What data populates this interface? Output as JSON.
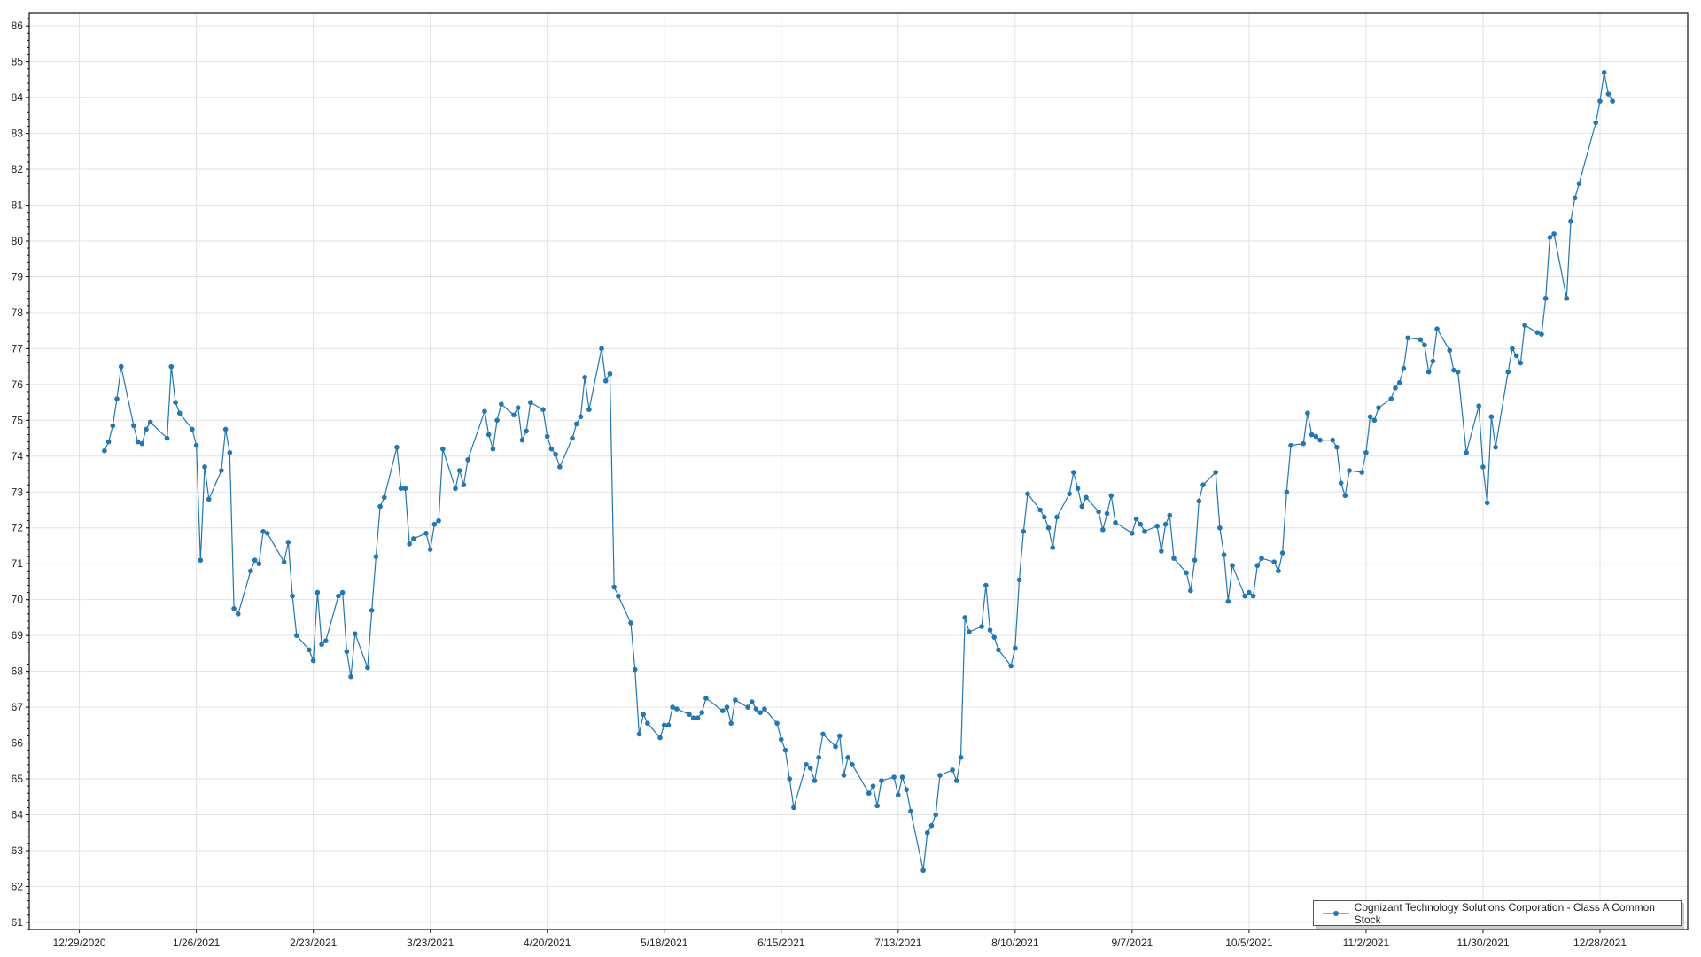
{
  "chart_data": {
    "type": "line",
    "title": "",
    "xlabel": "",
    "ylabel": "",
    "xlim": [
      "2020-12-17",
      "2022-01-18"
    ],
    "ylim": [
      60.8,
      86.35
    ],
    "yticks": [
      61,
      62,
      63,
      64,
      65,
      66,
      67,
      68,
      69,
      70,
      71,
      72,
      73,
      74,
      75,
      76,
      77,
      78,
      79,
      80,
      81,
      82,
      83,
      84,
      85,
      86
    ],
    "xticks": [
      "2020-12-29",
      "2021-01-26",
      "2021-02-23",
      "2021-03-23",
      "2021-04-20",
      "2021-05-18",
      "2021-06-15",
      "2021-07-13",
      "2021-08-10",
      "2021-09-07",
      "2021-10-05",
      "2021-11-02",
      "2021-11-30",
      "2021-12-28"
    ],
    "xtick_labels": [
      "12/29/2020",
      "1/26/2021",
      "2/23/2021",
      "3/23/2021",
      "4/20/2021",
      "5/18/2021",
      "6/15/2021",
      "7/13/2021",
      "8/10/2021",
      "9/7/2021",
      "10/5/2021",
      "11/2/2021",
      "11/30/2021",
      "12/28/2021"
    ],
    "grid": true,
    "legend_placement": "bottom-right",
    "series": [
      {
        "name": "Cognizant Technology Solutions Corporation - Class A Common Stock",
        "color": "#1f77b4",
        "marker": "circle",
        "x": [
          "2021-01-04",
          "2021-01-05",
          "2021-01-06",
          "2021-01-07",
          "2021-01-08",
          "2021-01-11",
          "2021-01-12",
          "2021-01-13",
          "2021-01-14",
          "2021-01-15",
          "2021-01-19",
          "2021-01-20",
          "2021-01-21",
          "2021-01-22",
          "2021-01-25",
          "2021-01-26",
          "2021-01-27",
          "2021-01-28",
          "2021-01-29",
          "2021-02-01",
          "2021-02-02",
          "2021-02-03",
          "2021-02-04",
          "2021-02-05",
          "2021-02-08",
          "2021-02-09",
          "2021-02-10",
          "2021-02-11",
          "2021-02-12",
          "2021-02-16",
          "2021-02-17",
          "2021-02-18",
          "2021-02-19",
          "2021-02-22",
          "2021-02-23",
          "2021-02-24",
          "2021-02-25",
          "2021-02-26",
          "2021-03-01",
          "2021-03-02",
          "2021-03-03",
          "2021-03-04",
          "2021-03-05",
          "2021-03-08",
          "2021-03-09",
          "2021-03-10",
          "2021-03-11",
          "2021-03-12",
          "2021-03-15",
          "2021-03-16",
          "2021-03-17",
          "2021-03-18",
          "2021-03-19",
          "2021-03-22",
          "2021-03-23",
          "2021-03-24",
          "2021-03-25",
          "2021-03-26",
          "2021-03-29",
          "2021-03-30",
          "2021-03-31",
          "2021-04-01",
          "2021-04-05",
          "2021-04-06",
          "2021-04-07",
          "2021-04-08",
          "2021-04-09",
          "2021-04-12",
          "2021-04-13",
          "2021-04-14",
          "2021-04-15",
          "2021-04-16",
          "2021-04-19",
          "2021-04-20",
          "2021-04-21",
          "2021-04-22",
          "2021-04-23",
          "2021-04-26",
          "2021-04-27",
          "2021-04-28",
          "2021-04-29",
          "2021-04-30",
          "2021-05-03",
          "2021-05-04",
          "2021-05-05",
          "2021-05-06",
          "2021-05-07",
          "2021-05-10",
          "2021-05-11",
          "2021-05-12",
          "2021-05-13",
          "2021-05-14",
          "2021-05-17",
          "2021-05-18",
          "2021-05-19",
          "2021-05-20",
          "2021-05-21",
          "2021-05-24",
          "2021-05-25",
          "2021-05-26",
          "2021-05-27",
          "2021-05-28",
          "2021-06-01",
          "2021-06-02",
          "2021-06-03",
          "2021-06-04",
          "2021-06-07",
          "2021-06-08",
          "2021-06-09",
          "2021-06-10",
          "2021-06-11",
          "2021-06-14",
          "2021-06-15",
          "2021-06-16",
          "2021-06-17",
          "2021-06-18",
          "2021-06-21",
          "2021-06-22",
          "2021-06-23",
          "2021-06-24",
          "2021-06-25",
          "2021-06-28",
          "2021-06-29",
          "2021-06-30",
          "2021-07-01",
          "2021-07-02",
          "2021-07-06",
          "2021-07-07",
          "2021-07-08",
          "2021-07-09",
          "2021-07-12",
          "2021-07-13",
          "2021-07-14",
          "2021-07-15",
          "2021-07-16",
          "2021-07-19",
          "2021-07-20",
          "2021-07-21",
          "2021-07-22",
          "2021-07-23",
          "2021-07-26",
          "2021-07-27",
          "2021-07-28",
          "2021-07-29",
          "2021-07-30",
          "2021-08-02",
          "2021-08-03",
          "2021-08-04",
          "2021-08-05",
          "2021-08-06",
          "2021-08-09",
          "2021-08-10",
          "2021-08-11",
          "2021-08-12",
          "2021-08-13",
          "2021-08-16",
          "2021-08-17",
          "2021-08-18",
          "2021-08-19",
          "2021-08-20",
          "2021-08-23",
          "2021-08-24",
          "2021-08-25",
          "2021-08-26",
          "2021-08-27",
          "2021-08-30",
          "2021-08-31",
          "2021-09-01",
          "2021-09-02",
          "2021-09-03",
          "2021-09-07",
          "2021-09-08",
          "2021-09-09",
          "2021-09-10",
          "2021-09-13",
          "2021-09-14",
          "2021-09-15",
          "2021-09-16",
          "2021-09-17",
          "2021-09-20",
          "2021-09-21",
          "2021-09-22",
          "2021-09-23",
          "2021-09-24",
          "2021-09-27",
          "2021-09-28",
          "2021-09-29",
          "2021-09-30",
          "2021-10-01",
          "2021-10-04",
          "2021-10-05",
          "2021-10-06",
          "2021-10-07",
          "2021-10-08",
          "2021-10-11",
          "2021-10-12",
          "2021-10-13",
          "2021-10-14",
          "2021-10-15",
          "2021-10-18",
          "2021-10-19",
          "2021-10-20",
          "2021-10-21",
          "2021-10-22",
          "2021-10-25",
          "2021-10-26",
          "2021-10-27",
          "2021-10-28",
          "2021-10-29",
          "2021-11-01",
          "2021-11-02",
          "2021-11-03",
          "2021-11-04",
          "2021-11-05",
          "2021-11-08",
          "2021-11-09",
          "2021-11-10",
          "2021-11-11",
          "2021-11-12",
          "2021-11-15",
          "2021-11-16",
          "2021-11-17",
          "2021-11-18",
          "2021-11-19",
          "2021-11-22",
          "2021-11-23",
          "2021-11-24",
          "2021-11-26",
          "2021-11-29",
          "2021-11-30",
          "2021-12-01",
          "2021-12-02",
          "2021-12-03",
          "2021-12-06",
          "2021-12-07",
          "2021-12-08",
          "2021-12-09",
          "2021-12-10",
          "2021-12-13",
          "2021-12-14",
          "2021-12-15",
          "2021-12-16",
          "2021-12-17",
          "2021-12-20",
          "2021-12-21",
          "2021-12-22",
          "2021-12-23",
          "2021-12-27",
          "2021-12-28",
          "2021-12-29",
          "2021-12-30",
          "2021-12-31"
        ],
        "y": [
          74.15,
          74.4,
          74.85,
          75.6,
          76.5,
          74.85,
          74.4,
          74.35,
          74.75,
          74.95,
          74.5,
          76.5,
          75.5,
          75.2,
          74.75,
          74.3,
          71.1,
          73.7,
          72.8,
          73.6,
          74.75,
          74.1,
          69.75,
          69.6,
          70.8,
          71.1,
          71.0,
          71.9,
          71.85,
          71.05,
          71.6,
          70.1,
          69.0,
          68.6,
          68.3,
          70.2,
          68.75,
          68.85,
          70.1,
          70.2,
          68.55,
          67.85,
          69.05,
          68.1,
          69.7,
          71.2,
          72.6,
          72.85,
          74.25,
          73.1,
          73.1,
          71.55,
          71.7,
          71.85,
          71.4,
          72.1,
          72.2,
          74.2,
          73.1,
          73.6,
          73.2,
          73.9,
          75.25,
          74.6,
          74.2,
          75.0,
          75.45,
          75.15,
          75.35,
          74.45,
          74.7,
          75.5,
          75.3,
          74.55,
          74.2,
          74.05,
          73.7,
          74.5,
          74.9,
          75.1,
          76.2,
          75.3,
          77.0,
          76.1,
          76.3,
          70.35,
          70.1,
          69.35,
          68.05,
          66.25,
          66.8,
          66.55,
          66.15,
          66.5,
          66.5,
          67.0,
          66.95,
          66.8,
          66.7,
          66.7,
          66.85,
          67.25,
          66.9,
          67.0,
          66.55,
          67.2,
          67.0,
          67.15,
          66.95,
          66.85,
          66.95,
          66.55,
          66.1,
          65.8,
          65.0,
          64.2,
          65.4,
          65.3,
          64.95,
          65.6,
          66.25,
          65.9,
          66.2,
          65.1,
          65.6,
          65.4,
          64.6,
          64.8,
          64.25,
          64.95,
          65.05,
          64.55,
          65.05,
          64.7,
          64.1,
          62.45,
          63.5,
          63.7,
          64.0,
          65.1,
          65.25,
          64.95,
          65.6,
          69.5,
          69.1,
          69.25,
          70.4,
          69.15,
          68.95,
          68.6,
          68.15,
          68.65,
          70.55,
          71.9,
          72.95,
          72.5,
          72.3,
          72.0,
          71.45,
          72.3,
          72.95,
          73.55,
          73.1,
          72.6,
          72.85,
          72.45,
          71.95,
          72.4,
          72.9,
          72.15,
          71.85,
          72.25,
          72.1,
          71.9,
          72.05,
          71.35,
          72.1,
          72.35,
          71.15,
          70.75,
          70.25,
          71.1,
          72.75,
          73.2,
          73.55,
          72.0,
          71.25,
          69.95,
          70.95,
          70.1,
          70.2,
          70.1,
          70.95,
          71.15,
          71.05,
          70.8,
          71.3,
          73.0,
          74.3,
          74.35,
          75.2,
          74.6,
          74.55,
          74.45,
          74.45,
          74.25,
          73.25,
          72.9,
          73.6,
          73.55,
          74.1,
          75.1,
          75.0,
          75.35,
          75.6,
          75.9,
          76.05,
          76.45,
          77.3,
          77.25,
          77.1,
          76.35,
          76.65,
          77.55,
          76.95,
          76.4,
          76.35,
          74.1,
          75.4,
          73.7,
          72.7,
          75.1,
          74.25,
          76.35,
          77.0,
          76.8,
          76.6,
          77.65,
          77.45,
          77.4,
          78.4,
          80.1,
          80.2,
          78.4,
          80.55,
          81.2,
          81.6,
          83.3,
          83.9,
          84.7,
          84.1,
          83.9
        ]
      }
    ]
  }
}
